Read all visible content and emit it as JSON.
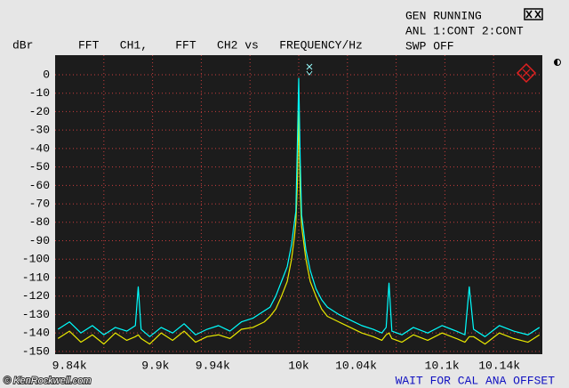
{
  "chart_data": {
    "type": "line",
    "title": "FFT   CH1,    FFT   CH2 vs   FREQUENCY/Hz",
    "y_label": "dBr",
    "x": [
      9832,
      9840,
      9848,
      9856,
      9864,
      9872,
      9880,
      9886,
      9888,
      9890,
      9896,
      9904,
      9912,
      9920,
      9928,
      9936,
      9944,
      9952,
      9960,
      9968,
      9976,
      9980,
      9984,
      9988,
      9992,
      9995,
      9997,
      9998,
      9999,
      10000,
      10001,
      10002,
      10003,
      10005,
      10008,
      10012,
      10016,
      10020,
      10028,
      10036,
      10044,
      10052,
      10058,
      10061,
      10063,
      10065,
      10072,
      10080,
      10090,
      10100,
      10110,
      10116,
      10119,
      10122,
      10130,
      10140,
      10150,
      10160,
      10168
    ],
    "series": [
      {
        "name": "FFT CH2",
        "color": "#e8e800",
        "values": [
          -143,
          -139,
          -145,
          -141,
          -146,
          -140,
          -144,
          -142,
          -141,
          -143,
          -146,
          -140,
          -144,
          -139,
          -145,
          -142,
          -141,
          -143,
          -138,
          -137,
          -134,
          -131,
          -127,
          -120,
          -112,
          -100,
          -88,
          -80,
          -60,
          -20,
          -62,
          -82,
          -88,
          -100,
          -112,
          -120,
          -127,
          -131,
          -134,
          -137,
          -140,
          -142,
          -144,
          -141,
          -140,
          -143,
          -145,
          -141,
          -144,
          -140,
          -143,
          -145,
          -142,
          -142,
          -146,
          -140,
          -143,
          -145,
          -141
        ]
      },
      {
        "name": "FFT CH1",
        "color": "#00ffff",
        "values": [
          -138,
          -134,
          -140,
          -136,
          -141,
          -137,
          -139,
          -136,
          -115,
          -138,
          -142,
          -137,
          -140,
          -135,
          -141,
          -138,
          -136,
          -139,
          -134,
          -132,
          -128,
          -126,
          -120,
          -112,
          -104,
          -92,
          -80,
          -74,
          -40,
          -2,
          -45,
          -76,
          -82,
          -95,
          -106,
          -116,
          -122,
          -126,
          -130,
          -133,
          -136,
          -138,
          -140,
          -137,
          -113,
          -139,
          -141,
          -137,
          -140,
          -136,
          -139,
          -141,
          -115,
          -138,
          -142,
          -136,
          -139,
          -141,
          -137
        ]
      }
    ],
    "xlim": [
      9830,
      10170
    ],
    "ylim": [
      -151.5,
      10.6
    ],
    "xticks": [
      {
        "value": 9840,
        "label": "9.84k"
      },
      {
        "value": 9900,
        "label": "9.9k"
      },
      {
        "value": 9940,
        "label": "9.94k"
      },
      {
        "value": 10000,
        "label": "10k"
      },
      {
        "value": 10040,
        "label": "10.04k"
      },
      {
        "value": 10100,
        "label": "10.1k"
      },
      {
        "value": 10140,
        "label": "10.14k"
      }
    ],
    "yticks": [
      0,
      -10,
      -20,
      -30,
      -40,
      -50,
      -60,
      -70,
      -80,
      -90,
      -100,
      -110,
      -120,
      -130,
      -140,
      -150
    ],
    "grid": true
  },
  "status": {
    "lines": [
      "GEN RUNNING",
      "ANL 1:CONT 2:CONT",
      "SWP OFF"
    ]
  },
  "footer": {
    "watermark": "© KenRockwell.com",
    "message": "WAIT FOR CAL ANA OFFSET"
  }
}
